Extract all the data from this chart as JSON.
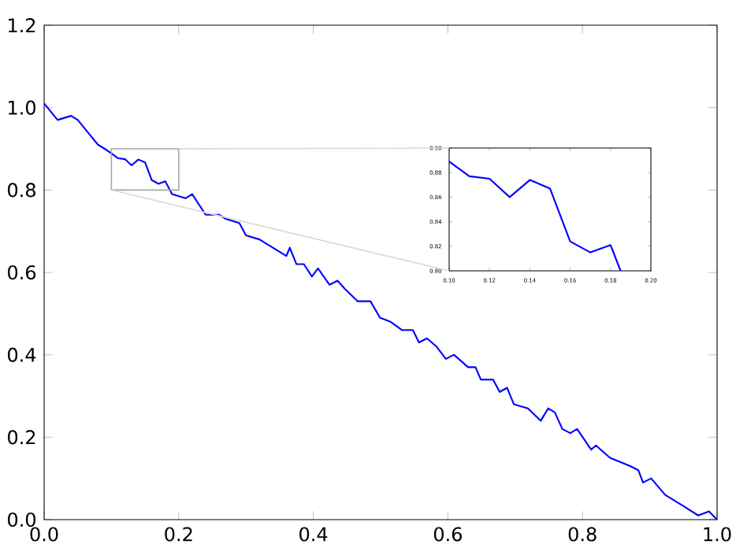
{
  "chart_data": [
    {
      "type": "line",
      "color": "#0000ff",
      "x": [
        0.0,
        0.02,
        0.04,
        0.05,
        0.07,
        0.08,
        0.09,
        0.1,
        0.11,
        0.12,
        0.13,
        0.14,
        0.15,
        0.16,
        0.17,
        0.18,
        0.19,
        0.2,
        0.21,
        0.22,
        0.24,
        0.26,
        0.27,
        0.29,
        0.3,
        0.32,
        0.34,
        0.36,
        0.365,
        0.375,
        0.386,
        0.398,
        0.407,
        0.424,
        0.436,
        0.447,
        0.466,
        0.485,
        0.499,
        0.515,
        0.532,
        0.548,
        0.557,
        0.569,
        0.583,
        0.597,
        0.609,
        0.63,
        0.641,
        0.649,
        0.667,
        0.677,
        0.688,
        0.698,
        0.719,
        0.738,
        0.749,
        0.759,
        0.77,
        0.782,
        0.792,
        0.813,
        0.82,
        0.841,
        0.871,
        0.883,
        0.89,
        0.902,
        0.923,
        0.953,
        0.972,
        0.988,
        1.0
      ],
      "values": [
        1.01,
        0.97,
        0.98,
        0.97,
        0.93,
        0.91,
        0.9,
        0.889,
        0.877,
        0.875,
        0.86,
        0.874,
        0.867,
        0.824,
        0.815,
        0.821,
        0.79,
        0.785,
        0.78,
        0.79,
        0.74,
        0.74,
        0.73,
        0.72,
        0.69,
        0.68,
        0.66,
        0.64,
        0.66,
        0.62,
        0.62,
        0.59,
        0.61,
        0.57,
        0.58,
        0.56,
        0.53,
        0.53,
        0.49,
        0.48,
        0.46,
        0.46,
        0.43,
        0.44,
        0.42,
        0.39,
        0.4,
        0.37,
        0.37,
        0.34,
        0.34,
        0.31,
        0.32,
        0.28,
        0.27,
        0.24,
        0.27,
        0.26,
        0.22,
        0.21,
        0.22,
        0.17,
        0.18,
        0.15,
        0.13,
        0.12,
        0.09,
        0.1,
        0.06,
        0.03,
        0.01,
        0.02,
        0.0
      ],
      "xlim": [
        0,
        1
      ],
      "ylim": [
        0,
        1.2
      ],
      "xticks": [
        {
          "value": 0,
          "label": "0.0"
        },
        0.2,
        0.4,
        0.6,
        0.8,
        {
          "value": 1,
          "label": "1.0"
        }
      ],
      "yticks": [
        {
          "value": 0,
          "label": "0.0"
        },
        0.2,
        0.4,
        0.6,
        0.8,
        {
          "value": 1,
          "label": "1.0"
        },
        1.2
      ]
    },
    {
      "type": "line",
      "color": "#0000ff",
      "x": [
        0.1,
        0.11,
        0.12,
        0.13,
        0.14,
        0.15,
        0.16,
        0.17,
        0.18,
        0.185
      ],
      "values": [
        0.889,
        0.877,
        0.875,
        0.86,
        0.874,
        0.867,
        0.824,
        0.815,
        0.821,
        0.8
      ],
      "xlim": [
        0.1,
        0.2
      ],
      "ylim": [
        0.8,
        0.9
      ],
      "xticks": [
        {
          "value": 0.1,
          "label": "0.10"
        },
        0.12,
        0.14,
        0.16,
        0.18,
        {
          "value": 0.2,
          "label": "0.20"
        }
      ],
      "yticks": [
        {
          "value": 0.8,
          "label": "0.80"
        },
        0.82,
        0.84,
        0.86,
        0.88,
        {
          "value": 0.9,
          "label": "0.90"
        }
      ]
    }
  ]
}
